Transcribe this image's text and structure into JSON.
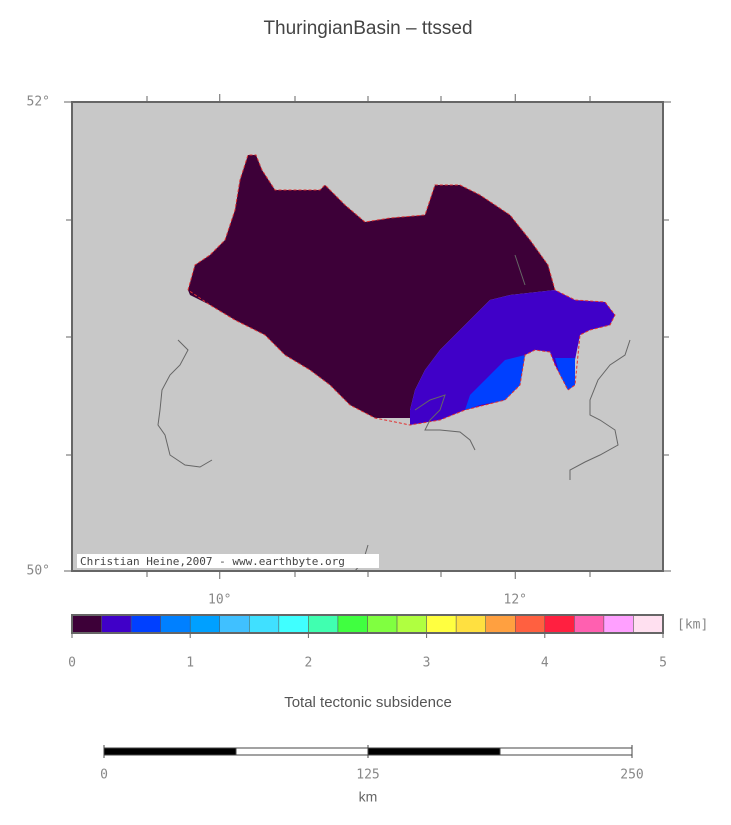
{
  "title": "ThuringianBasin – ttssed",
  "credit": "Christian Heine,2007 - www.earthbyte.org",
  "axes": {
    "xlim": [
      9,
      13
    ],
    "ylim": [
      50,
      52
    ],
    "xticks": [
      {
        "value": 10,
        "label": "10°"
      },
      {
        "value": 12,
        "label": "12°"
      }
    ],
    "yticks": [
      {
        "value": 50,
        "label": "50°"
      },
      {
        "value": 52,
        "label": "52°"
      }
    ]
  },
  "colorbar": {
    "range": [
      0,
      5
    ],
    "ticks": [
      0,
      1,
      2,
      3,
      4,
      5
    ],
    "unit": "[km]",
    "label": "Total tectonic subsidence",
    "colors": [
      "#3d0038",
      "#4000c8",
      "#0040ff",
      "#0080ff",
      "#00a0ff",
      "#40c0ff",
      "#40e0ff",
      "#40ffff",
      "#40ffb0",
      "#40ff40",
      "#80ff40",
      "#b0ff40",
      "#ffff40",
      "#ffe040",
      "#ffa040",
      "#ff6040",
      "#ff2040",
      "#ff60b0",
      "#ffa0ff",
      "#ffe0f0"
    ]
  },
  "scalebar": {
    "range": [
      0,
      250
    ],
    "ticks": [
      0,
      125,
      250
    ],
    "unit": "km"
  }
}
